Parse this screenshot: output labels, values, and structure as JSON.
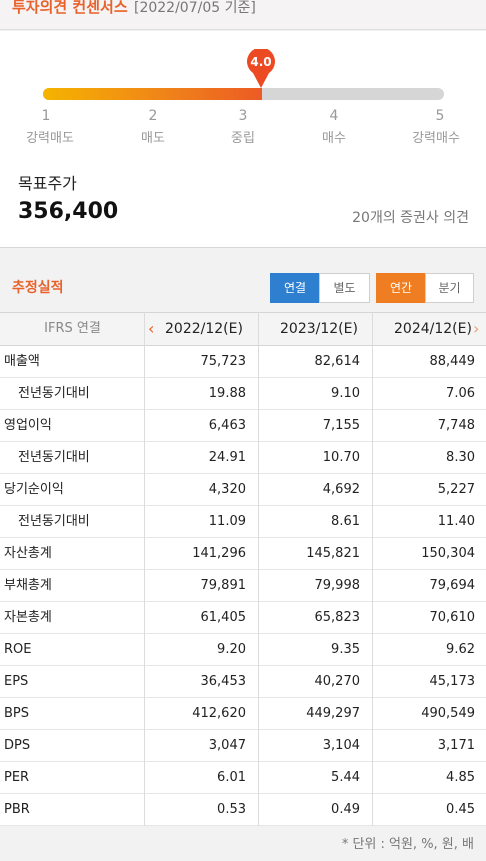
{
  "consensus": {
    "title": "투자의견 컨센서스",
    "date": "[2022/07/05 기준]",
    "score": "4.0",
    "score_value": 4.0,
    "scale_min": 1,
    "scale_max": 5,
    "scale": [
      {
        "num": "1",
        "label": "강력매도"
      },
      {
        "num": "2",
        "label": "매도"
      },
      {
        "num": "3",
        "label": "중립"
      },
      {
        "num": "4",
        "label": "매수"
      },
      {
        "num": "5",
        "label": "강력매수"
      }
    ],
    "target_label": "목표주가",
    "target_price": "356,400",
    "analyst_count": "20개의 증권사 의견",
    "colors": {
      "accent": "#e9622b",
      "gradient_start": "#f5b400",
      "gradient_end": "#ec5b24",
      "track": "#d6d6d6"
    }
  },
  "estimates": {
    "title": "추정실적",
    "toggles": {
      "consolidated": "연결",
      "separate": "별도",
      "annual": "연간",
      "quarterly": "분기"
    },
    "header_first": "IFRS 연결",
    "columns": [
      "2022/12(E)",
      "2023/12(E)",
      "2024/12(E)"
    ],
    "rows": [
      {
        "label": "매출액",
        "sub": false,
        "values": [
          "75,723",
          "82,614",
          "88,449"
        ]
      },
      {
        "label": "전년동기대비",
        "sub": true,
        "values": [
          "19.88",
          "9.10",
          "7.06"
        ]
      },
      {
        "label": "영업이익",
        "sub": false,
        "values": [
          "6,463",
          "7,155",
          "7,748"
        ]
      },
      {
        "label": "전년동기대비",
        "sub": true,
        "values": [
          "24.91",
          "10.70",
          "8.30"
        ]
      },
      {
        "label": "당기순이익",
        "sub": false,
        "values": [
          "4,320",
          "4,692",
          "5,227"
        ]
      },
      {
        "label": "전년동기대비",
        "sub": true,
        "values": [
          "11.09",
          "8.61",
          "11.40"
        ]
      },
      {
        "label": "자산총계",
        "sub": false,
        "values": [
          "141,296",
          "145,821",
          "150,304"
        ]
      },
      {
        "label": "부채총계",
        "sub": false,
        "values": [
          "79,891",
          "79,998",
          "79,694"
        ]
      },
      {
        "label": "자본총계",
        "sub": false,
        "values": [
          "61,405",
          "65,823",
          "70,610"
        ]
      },
      {
        "label": "ROE",
        "sub": false,
        "values": [
          "9.20",
          "9.35",
          "9.62"
        ]
      },
      {
        "label": "EPS",
        "sub": false,
        "values": [
          "36,453",
          "40,270",
          "45,173"
        ]
      },
      {
        "label": "BPS",
        "sub": false,
        "values": [
          "412,620",
          "449,297",
          "490,549"
        ]
      },
      {
        "label": "DPS",
        "sub": false,
        "values": [
          "3,047",
          "3,104",
          "3,171"
        ]
      },
      {
        "label": "PER",
        "sub": false,
        "values": [
          "6.01",
          "5.44",
          "4.85"
        ]
      },
      {
        "label": "PBR",
        "sub": false,
        "values": [
          "0.53",
          "0.49",
          "0.45"
        ]
      }
    ],
    "footnote": "* 단위 : 억원, %, 원, 배",
    "icons": {
      "prev": "chevron-left-icon",
      "next": "chevron-right-icon"
    }
  }
}
